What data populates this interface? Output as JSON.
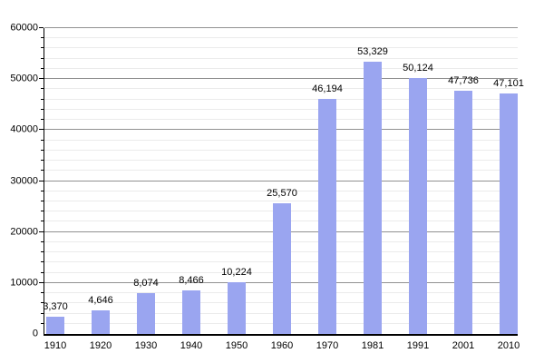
{
  "chart_data": {
    "type": "bar",
    "title": "",
    "xlabel": "",
    "ylabel": "",
    "categories": [
      "1910",
      "1920",
      "1930",
      "1940",
      "1950",
      "1960",
      "1970",
      "1981",
      "1991",
      "2001",
      "2010"
    ],
    "values": [
      3370,
      4646,
      8074,
      8466,
      10224,
      25570,
      46194,
      53329,
      50124,
      47736,
      47101
    ],
    "value_labels": [
      "3,370",
      "4,646",
      "8,074",
      "8,466",
      "10,224",
      "25,570",
      "46,194",
      "53,329",
      "50,124",
      "47,736",
      "47,101"
    ],
    "ylim": [
      0,
      60000
    ],
    "ytick_interval": 10000,
    "minor_tick_interval": 2000,
    "ytick_labels": [
      "0",
      "10000",
      "20000",
      "30000",
      "40000",
      "50000",
      "60000"
    ],
    "grid": "on",
    "legend": "none",
    "colors": {
      "bar_fill": "#9aa5f0",
      "major_gridline": "#919191",
      "minor_gridline": "#ebebeb",
      "axis_line": "#000000",
      "label_text": "#000000",
      "background": "#ffffff"
    }
  }
}
